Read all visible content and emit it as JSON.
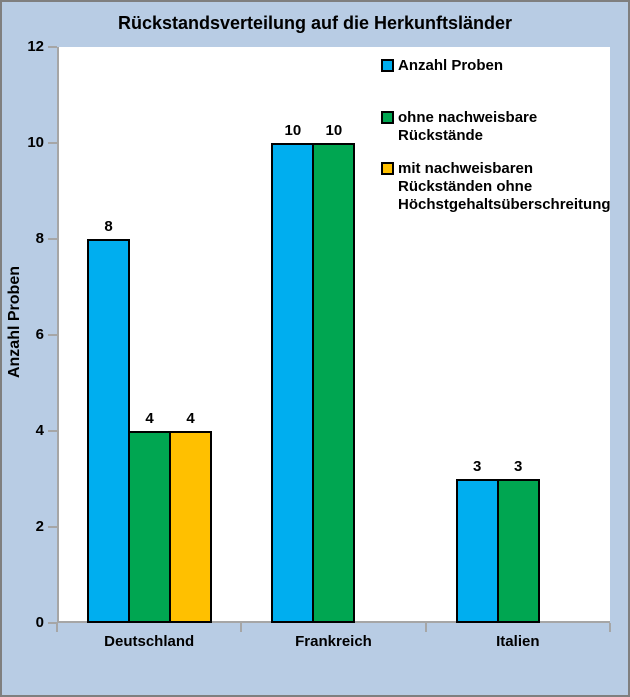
{
  "chart_data": {
    "type": "bar",
    "title": "Rückstandsverteilung auf die Herkunftsländer",
    "xlabel": "",
    "ylabel": "Anzahl Proben",
    "ylim": [
      0,
      12
    ],
    "yticks": [
      0,
      2,
      4,
      6,
      8,
      10,
      12
    ],
    "grid": false,
    "legend_position": "top-right-inside-plot",
    "bar_value_labels_shown": true,
    "categories": [
      "Deutschland",
      "Frankreich",
      "Italien"
    ],
    "series": [
      {
        "key": "anzahl-proben",
        "name": "Anzahl Proben",
        "color": "#00AEEF",
        "values": [
          8,
          10,
          3
        ]
      },
      {
        "key": "ohne-nachweisbare-rueckstaende",
        "name": "ohne nachweisbare Rückstände",
        "color": "#00A651",
        "values": [
          4,
          10,
          3
        ]
      },
      {
        "key": "mit-nachweisbaren-rueckstaenden",
        "name": "mit nachweisbaren Rückständen ohne Höchstgehaltsüberschreitung",
        "color": "#FFC000",
        "values": [
          4,
          0,
          0
        ]
      }
    ]
  },
  "legend": {
    "items": [
      {
        "color": "#00AEEF",
        "lines": [
          "Anzahl Proben"
        ]
      },
      {
        "color": "#00A651",
        "lines": [
          "ohne nachweisbare",
          "Rückstände"
        ]
      },
      {
        "color": "#FFC000",
        "lines": [
          "mit nachweisbaren",
          "Rückständen ohne",
          "Höchstgehaltsüberschreitung"
        ]
      }
    ]
  },
  "colors": {
    "frame_background": "#B8CCE4",
    "frame_border": "#7F7F7F",
    "plot_background": "#FFFFFF",
    "axis_line": "#A6A6A6",
    "bar_border": "#000000",
    "text": "#000000"
  }
}
